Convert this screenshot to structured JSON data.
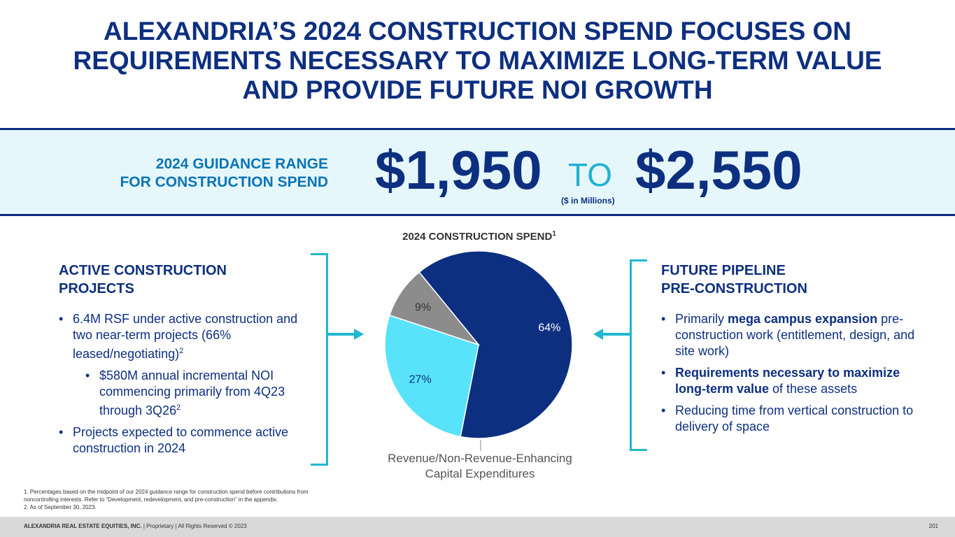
{
  "title": {
    "line1": "ALEXANDRIA’S 2024 CONSTRUCTION SPEND FOCUSES ON",
    "line2": "REQUIREMENTS NECESSARY TO MAXIMIZE LONG-TERM VALUE",
    "line3": "AND PROVIDE FUTURE NOI GROWTH"
  },
  "guidance": {
    "label_line1": "2024 GUIDANCE RANGE",
    "label_line2": "FOR CONSTRUCTION SPEND",
    "low": "$1,950",
    "to": "TO",
    "high": "$2,550",
    "units": "($ in Millions)"
  },
  "left": {
    "heading_line1": "ACTIVE CONSTRUCTION",
    "heading_line2": "PROJECTS",
    "bullets": [
      {
        "text": "6.4M RSF under active construction and two near-term projects (66% leased/negotiating)",
        "sup": "2"
      },
      {
        "text": "$580M annual incremental NOI commencing primarily from 4Q23 through 3Q26",
        "sup": "2"
      },
      {
        "text": "Projects expected to commence active construction in 2024",
        "sup": ""
      }
    ]
  },
  "right": {
    "heading_line1": "FUTURE PIPELINE",
    "heading_line2": "PRE-CONSTRUCTION",
    "b1_pre": "Primarily ",
    "b1_bold": "mega campus expansion",
    "b1_post": " pre-construction work (entitlement, design, and site work)",
    "b2_bold": "Requirements necessary to maximize long-term value",
    "b2_post": " of these assets",
    "b3": "Reducing time from vertical construction to delivery of space"
  },
  "chart_data": {
    "type": "pie",
    "title": "2024 CONSTRUCTION SPEND",
    "title_sup": "1",
    "slices": [
      {
        "label": "64%",
        "value": 64,
        "color": "#0d2f80"
      },
      {
        "label": "27%",
        "value": 27,
        "color": "#58e3fb"
      },
      {
        "label": "9%",
        "value": 9,
        "color": "#8c8c8c"
      }
    ],
    "callout_line1": "Revenue/Non-Revenue-Enhancing",
    "callout_line2": "Capital Expenditures"
  },
  "footnotes": [
    "1.   Percentages based on the midpoint of our 2024 guidance range for construction spend before contributions from",
    "       noncontrolling interests. Refer to “Development, redevelopment, and pre-construction” in the appendix.",
    "2.   As of September 30, 2023."
  ],
  "footer": {
    "company": "ALEXANDRIA REAL ESTATE EQUITIES, INC.",
    "rest": " | Proprietary | All Rights Reserved © 2023",
    "page": "201"
  },
  "colors": {
    "navy": "#0d2f80",
    "cyan": "#58e3fb",
    "gray": "#8c8c8c",
    "band_bg": "#e6f7fb",
    "bracket": "#21b8d0"
  }
}
